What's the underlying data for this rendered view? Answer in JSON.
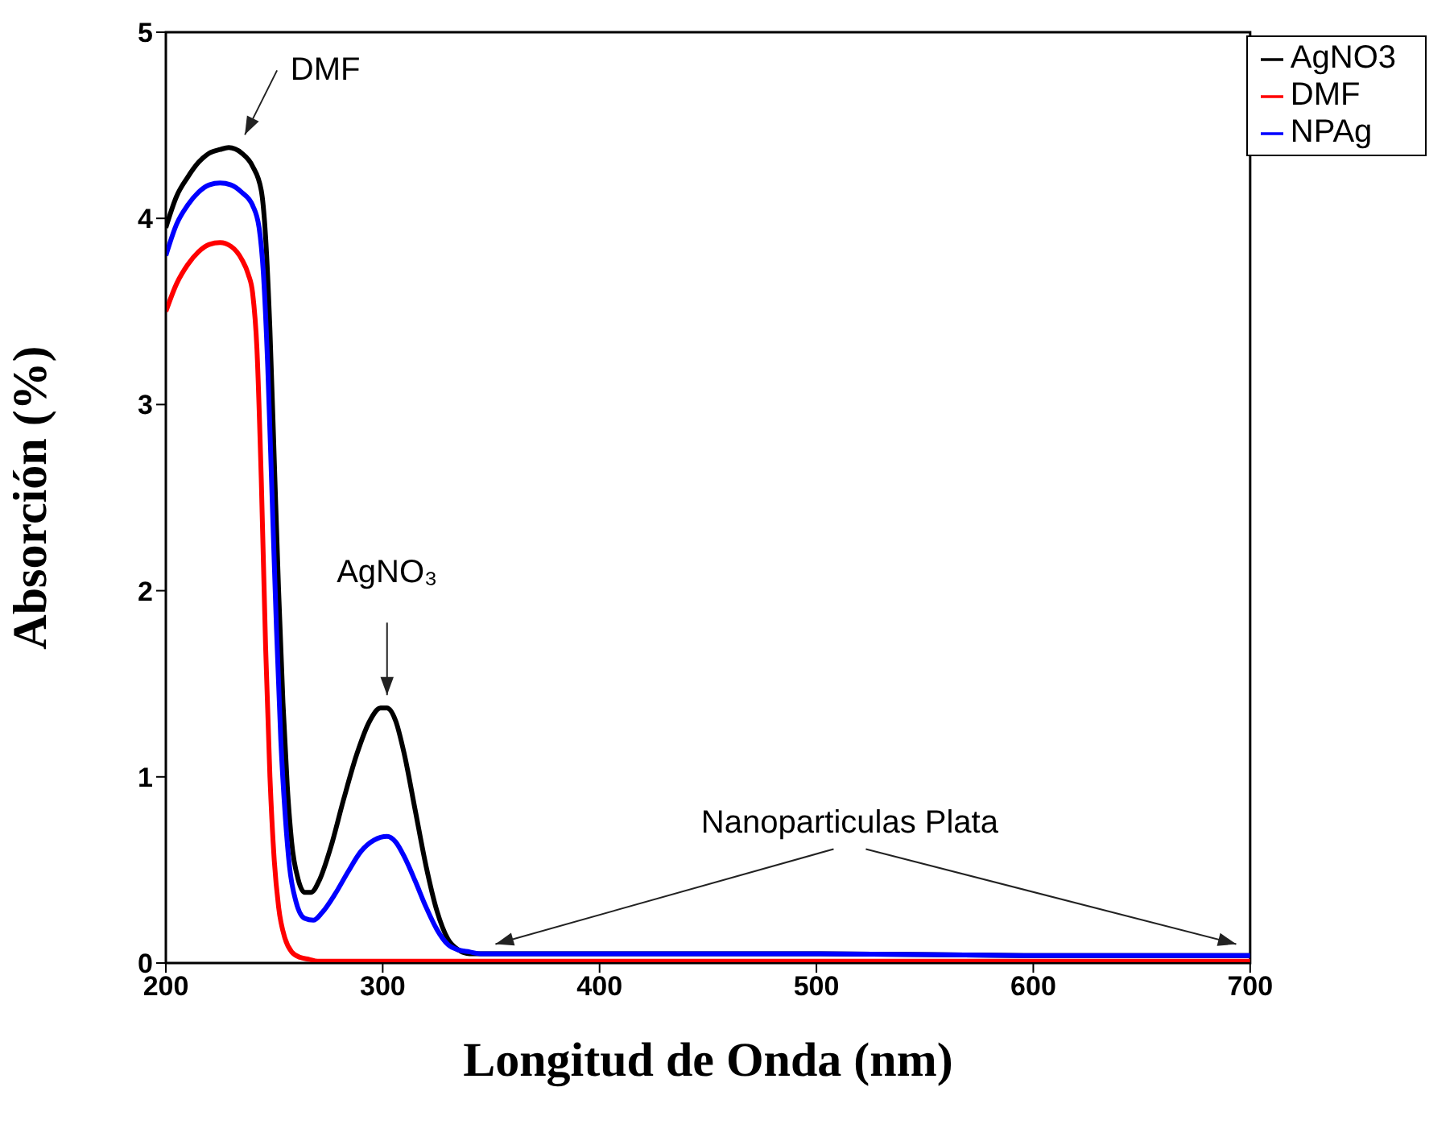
{
  "chart_data": {
    "type": "line",
    "xlabel": "Longitud de Onda (nm)",
    "ylabel": "Absorción (%)",
    "xlim": [
      200,
      700
    ],
    "xticks": [
      200,
      300,
      400,
      500,
      600,
      700
    ],
    "ylim": [
      0,
      5
    ],
    "yticks": [
      0,
      1,
      2,
      3,
      4,
      5
    ],
    "grid": false,
    "legend": "top right",
    "marker": "none",
    "line_style": "solid",
    "series": [
      {
        "name": "AgNO3",
        "color": "#000000",
        "x": [
          200,
          205,
          210,
          215,
          220,
          225,
          229,
          235,
          240,
          244,
          246,
          248,
          250,
          252,
          254,
          256,
          258,
          261,
          264,
          267,
          271,
          276,
          282,
          288,
          294,
          299,
          302,
          306,
          310,
          315,
          320,
          325,
          330,
          335,
          340,
          345,
          350,
          400,
          500,
          600,
          700
        ],
        "values": [
          3.95,
          4.12,
          4.22,
          4.3,
          4.35,
          4.37,
          4.38,
          4.35,
          4.28,
          4.15,
          3.9,
          3.4,
          2.7,
          2.0,
          1.4,
          0.95,
          0.65,
          0.45,
          0.38,
          0.38,
          0.45,
          0.62,
          0.88,
          1.12,
          1.3,
          1.37,
          1.37,
          1.3,
          1.12,
          0.82,
          0.52,
          0.28,
          0.13,
          0.07,
          0.05,
          0.05,
          0.05,
          0.05,
          0.05,
          0.04,
          0.04
        ]
      },
      {
        "name": "DMF",
        "color": "#ff0000",
        "x": [
          200,
          205,
          210,
          215,
          220,
          225,
          230,
          235,
          238,
          240,
          242,
          244,
          246,
          248,
          250,
          252,
          255,
          258,
          262,
          266,
          270,
          300,
          400,
          500,
          600,
          700
        ],
        "values": [
          3.5,
          3.65,
          3.75,
          3.82,
          3.86,
          3.87,
          3.85,
          3.78,
          3.7,
          3.6,
          3.3,
          2.6,
          1.7,
          1.0,
          0.55,
          0.3,
          0.13,
          0.06,
          0.03,
          0.02,
          0.01,
          0.01,
          0.01,
          0.01,
          0.01,
          0.01
        ]
      },
      {
        "name": "NPAg",
        "color": "#0000ff",
        "x": [
          200,
          205,
          210,
          215,
          220,
          225,
          230,
          235,
          240,
          243,
          245,
          247,
          249,
          251,
          253,
          255,
          257,
          260,
          264,
          268,
          272,
          278,
          284,
          290,
          296,
          302,
          306,
          310,
          315,
          320,
          325,
          330,
          335,
          340,
          345,
          350,
          400,
          500,
          600,
          700
        ],
        "values": [
          3.8,
          3.97,
          4.07,
          4.14,
          4.18,
          4.19,
          4.18,
          4.14,
          4.07,
          3.95,
          3.7,
          3.2,
          2.5,
          1.8,
          1.2,
          0.8,
          0.52,
          0.33,
          0.24,
          0.23,
          0.27,
          0.37,
          0.49,
          0.6,
          0.66,
          0.68,
          0.65,
          0.57,
          0.44,
          0.3,
          0.18,
          0.1,
          0.07,
          0.06,
          0.05,
          0.05,
          0.05,
          0.05,
          0.04,
          0.04
        ]
      }
    ],
    "annotations": [
      {
        "text": "DMF",
        "x": 229,
        "y": 4.38
      },
      {
        "text": "AgNO₃",
        "x": 302,
        "y": 1.37
      },
      {
        "text": "Nanoparticulas Plata",
        "x": 352,
        "y": 0.05
      }
    ]
  }
}
